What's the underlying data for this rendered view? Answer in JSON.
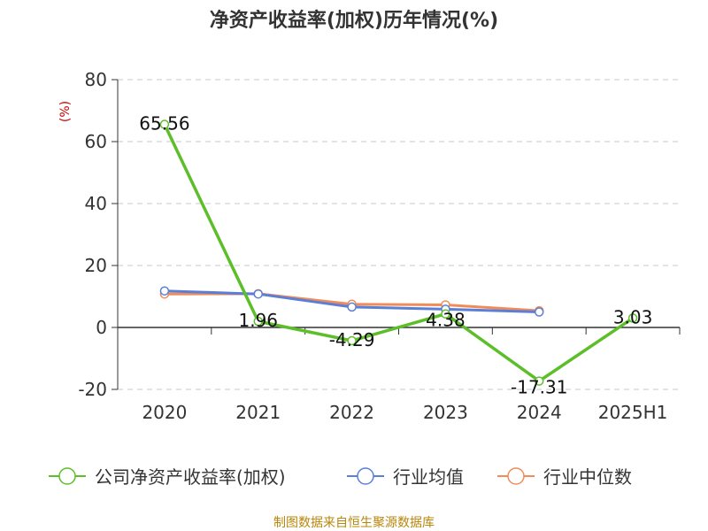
{
  "chart_data": {
    "type": "line",
    "title": "净资产收益率(加权)历年情况(%)",
    "ylabel": "(%)",
    "xlabel": "",
    "ylim": [
      -20,
      80
    ],
    "yticks": [
      80,
      60,
      40,
      20,
      0,
      -20
    ],
    "categories": [
      "2020",
      "2021",
      "2022",
      "2023",
      "2024",
      "2025H1"
    ],
    "grid": true,
    "legend_position": "bottom",
    "series": [
      {
        "name": "公司净资产收益率(加权)",
        "color": "#5cbf2a",
        "values": [
          65.56,
          1.96,
          -4.29,
          4.38,
          -17.31,
          3.03
        ],
        "labels": [
          "65.56",
          "1.96",
          "-4.29",
          "4.38",
          "-17.31",
          "3.03"
        ]
      },
      {
        "name": "行业均值",
        "color": "#5b7fd6",
        "values": [
          11.8,
          10.8,
          6.6,
          5.9,
          5.0,
          null
        ]
      },
      {
        "name": "行业中位数",
        "color": "#f08c5a",
        "values": [
          10.8,
          10.9,
          7.5,
          7.3,
          5.4,
          null
        ]
      }
    ],
    "source": "制图数据来自恒生聚源数据库"
  }
}
